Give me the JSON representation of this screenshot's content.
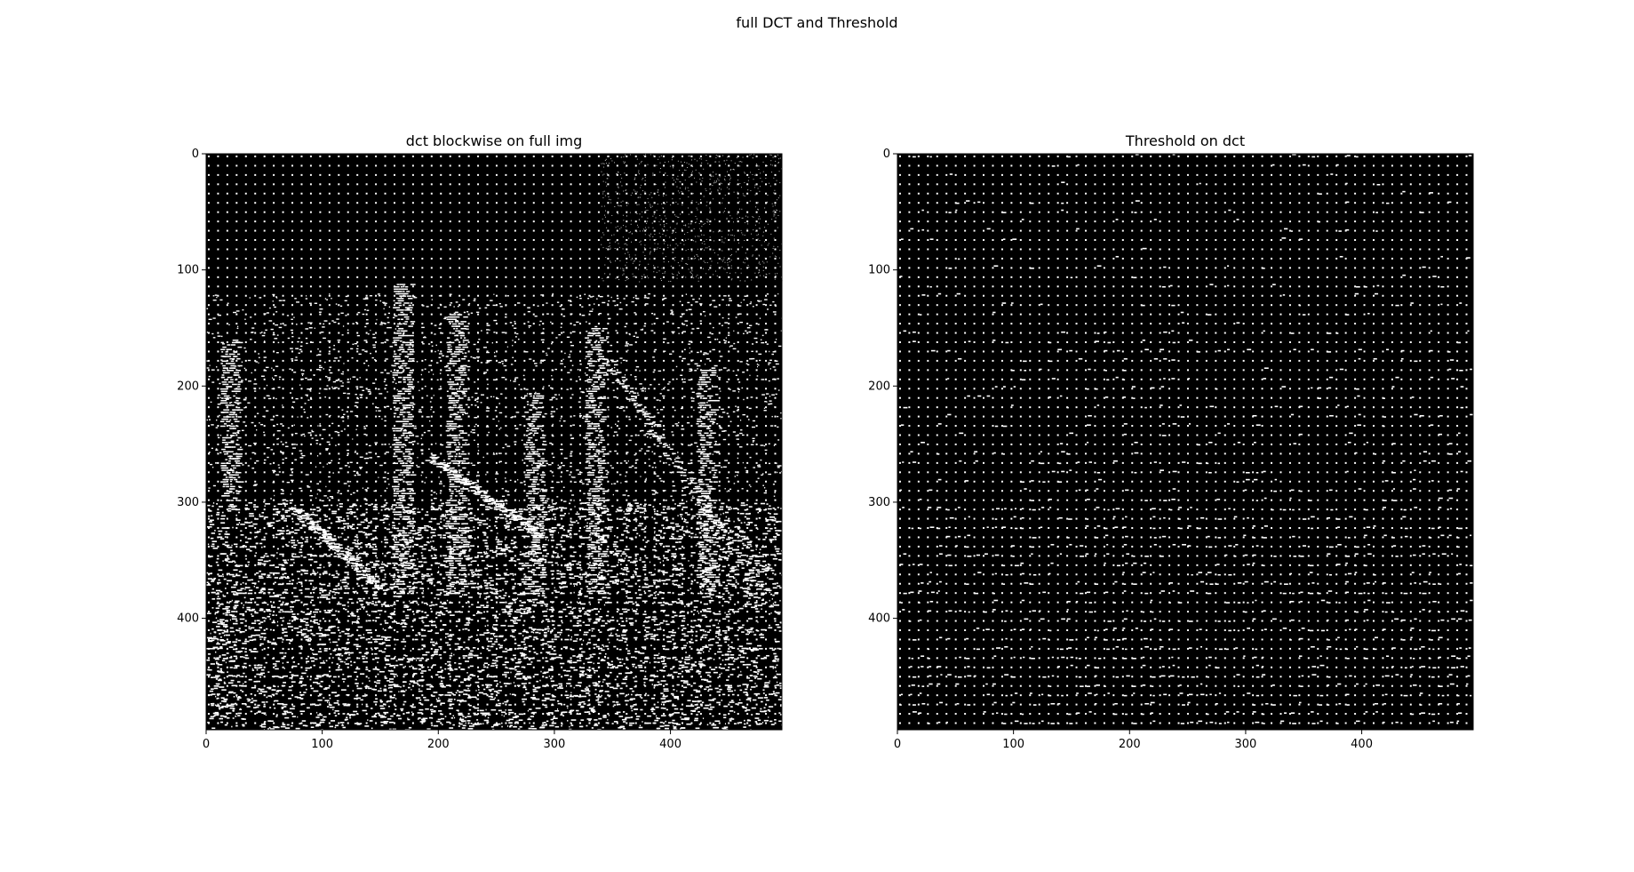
{
  "figure": {
    "suptitle": "full DCT and Threshold"
  },
  "chart_data": [
    {
      "type": "heatmap",
      "title": "dct blockwise on full img",
      "colormap": "gray",
      "xlim": [
        0,
        496
      ],
      "ylim": [
        496,
        0
      ],
      "xticks": [
        0,
        100,
        200,
        300,
        400
      ],
      "yticks": [
        0,
        100,
        200,
        300,
        400
      ],
      "xtick_labels": [
        "0",
        "100",
        "200",
        "300",
        "400"
      ],
      "ytick_labels": [
        "0",
        "100",
        "200",
        "300",
        "400"
      ],
      "block_size": 8,
      "white_structures": [
        {
          "x": 168,
          "y_top": 112,
          "y_bottom": 380
        },
        {
          "x": 214,
          "y_top": 136,
          "y_bottom": 380
        },
        {
          "x": 282,
          "y_top": 206,
          "y_bottom": 380
        },
        {
          "x": 334,
          "y_top": 150,
          "y_bottom": 380
        },
        {
          "x": 430,
          "y_top": 182,
          "y_bottom": 380
        },
        {
          "x": 20,
          "y_top": 160,
          "y_bottom": 300
        }
      ],
      "dense_region_from_y": 300
    },
    {
      "type": "heatmap",
      "title": "Threshold on dct",
      "colormap": "gray",
      "xlim": [
        0,
        496
      ],
      "ylim": [
        496,
        0
      ],
      "xticks": [
        0,
        100,
        200,
        300,
        400
      ],
      "yticks": [
        0,
        100,
        200,
        300,
        400
      ],
      "xtick_labels": [
        "0",
        "100",
        "200",
        "300",
        "400"
      ],
      "ytick_labels": [
        "0",
        "100",
        "200",
        "300",
        "400"
      ],
      "block_size": 8
    }
  ]
}
